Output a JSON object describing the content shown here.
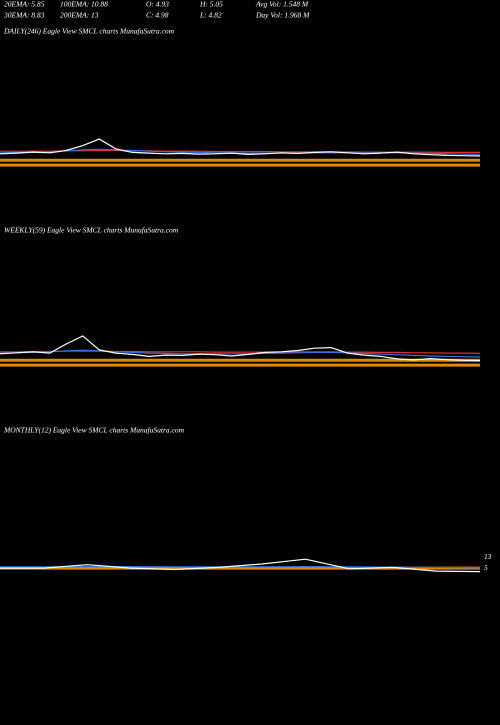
{
  "header": {
    "rows": [
      [
        "20EMA: 5.85",
        "100EMA: 10.88",
        "O: 4.93",
        "H: 5.05",
        "Avg Vol: 1.548  M"
      ],
      [
        "30EMA: 8.83",
        "200EMA: 13",
        "C: 4.98",
        "L: 4.82",
        "Day Vol: 1.968  M"
      ]
    ]
  },
  "chart_data": [
    {
      "type": "line",
      "title": "DAILY(246) Eagle  View  SMCL  charts MunafaSutra.com",
      "ylim": [
        0,
        40
      ],
      "series": [
        {
          "color": "#e08a00",
          "values": [
            3,
            3,
            3,
            3,
            3,
            3,
            3,
            3,
            3,
            3,
            3,
            3,
            3,
            3,
            3,
            3,
            3,
            3,
            3,
            3,
            3,
            3,
            3,
            3,
            3,
            3,
            3,
            3,
            3,
            3
          ]
        },
        {
          "color": "#e08a00",
          "values": [
            1.5,
            1.5,
            1.5,
            1.5,
            1.5,
            1.5,
            1.5,
            1.5,
            1.5,
            1.5,
            1.5,
            1.5,
            1.5,
            1.5,
            1.5,
            1.5,
            1.5,
            1.5,
            1.5,
            1.5,
            1.5,
            1.5,
            1.5,
            1.5,
            1.5,
            1.5,
            1.5,
            1.5,
            1.5,
            1.5
          ]
        },
        {
          "color": "#e03030",
          "values": [
            5.8,
            5.8,
            5.8,
            5.8,
            5.9,
            5.9,
            6,
            6,
            5.9,
            5.9,
            5.8,
            5.8,
            5.8,
            5.7,
            5.7,
            5.7,
            5.7,
            5.6,
            5.6,
            5.6,
            5.6,
            5.6,
            5.5,
            5.5,
            5.5,
            5.5,
            5.5,
            5.4,
            5.4,
            5.4
          ]
        },
        {
          "color": "#3a6fe0",
          "values": [
            5.3,
            5.4,
            5.5,
            5.6,
            5.9,
            6.2,
            6.4,
            6.2,
            6,
            5.8,
            5.6,
            5.5,
            5.4,
            5.3,
            5.3,
            5.2,
            5.2,
            5.2,
            5.2,
            5.3,
            5.3,
            5.3,
            5.3,
            5.3,
            5.3,
            5.2,
            5.1,
            5,
            4.9,
            4.8
          ]
        },
        {
          "color": "#ffffff",
          "values": [
            5,
            5.2,
            5.5,
            5.3,
            6,
            7.5,
            9.5,
            6.5,
            5.4,
            5.2,
            5,
            5.1,
            4.9,
            5,
            5.2,
            4.8,
            5,
            5.3,
            5.1,
            5.4,
            5.6,
            5.3,
            5,
            5.2,
            5.5,
            5,
            4.7,
            4.5,
            4.4,
            4.3
          ]
        }
      ]
    },
    {
      "type": "line",
      "title": "WEEKLY(59) Eagle  View  SMCL  charts MunafaSutra.com",
      "ylim": [
        0,
        40
      ],
      "series": [
        {
          "color": "#e08a00",
          "values": [
            3,
            3,
            3,
            3,
            3,
            3,
            3,
            3,
            3,
            3,
            3,
            3,
            3,
            3,
            3,
            3,
            3,
            3,
            3,
            3,
            3,
            3,
            3,
            3,
            3,
            3,
            3,
            3,
            3,
            3
          ]
        },
        {
          "color": "#e08a00",
          "values": [
            1.5,
            1.5,
            1.5,
            1.5,
            1.5,
            1.5,
            1.5,
            1.5,
            1.5,
            1.5,
            1.5,
            1.5,
            1.5,
            1.5,
            1.5,
            1.5,
            1.5,
            1.5,
            1.5,
            1.5,
            1.5,
            1.5,
            1.5,
            1.5,
            1.5,
            1.5,
            1.5,
            1.5,
            1.5,
            1.5
          ]
        },
        {
          "color": "#e03030",
          "values": [
            5.6,
            5.6,
            5.7,
            5.7,
            5.8,
            5.8,
            5.8,
            5.7,
            5.7,
            5.6,
            5.6,
            5.6,
            5.6,
            5.5,
            5.5,
            5.5,
            5.5,
            5.5,
            5.6,
            5.6,
            5.6,
            5.5,
            5.5,
            5.4,
            5.4,
            5.3,
            5.3,
            5.2,
            5.2,
            5.1
          ]
        },
        {
          "color": "#3a6fe0",
          "values": [
            5.2,
            5.3,
            5.4,
            5.6,
            5.9,
            6.1,
            5.9,
            5.6,
            5.4,
            5.2,
            5.1,
            5,
            5,
            5,
            5,
            5,
            5.1,
            5.2,
            5.3,
            5.4,
            5.4,
            5.3,
            5.1,
            4.9,
            4.7,
            4.5,
            4.3,
            4.2,
            4.1,
            4
          ]
        },
        {
          "color": "#ffffff",
          "values": [
            5,
            5.3,
            5.6,
            5.2,
            8,
            10.5,
            6.2,
            5.2,
            4.8,
            4.2,
            4.6,
            4.5,
            4.9,
            4.7,
            4.3,
            4.8,
            5.4,
            5.6,
            6,
            6.7,
            6.9,
            5.2,
            4.6,
            4.2,
            3.4,
            3.1,
            3.5,
            3.2,
            3,
            2.9
          ]
        }
      ]
    },
    {
      "type": "line",
      "title": "MONTHLY(12) Eagle  View  SMCL  charts MunafaSutra.com",
      "ylim": [
        0,
        30
      ],
      "yticks": [
        13,
        5
      ],
      "series": [
        {
          "color": "#e08a00",
          "values": [
            5,
            5,
            5,
            5,
            5,
            5,
            5,
            5,
            5,
            5,
            5,
            5
          ]
        },
        {
          "color": "#3a6fe0",
          "values": [
            6,
            6,
            6.1,
            6.1,
            6,
            6,
            6,
            6.1,
            5.9,
            5.7,
            5.5,
            5.2
          ]
        },
        {
          "color": "#ffffff",
          "values": [
            5,
            5,
            7.5,
            5,
            4,
            5.5,
            8,
            11.5,
            4.5,
            5.5,
            2.8,
            2.5
          ]
        }
      ]
    }
  ]
}
